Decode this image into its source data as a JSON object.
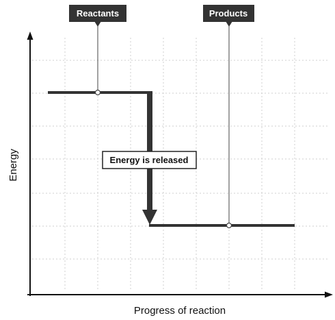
{
  "axes": {
    "x_label": "Progress of reaction",
    "y_label": "Energy"
  },
  "labels": {
    "reactants": "Reactants",
    "products": "Products",
    "energy_change": "Energy is released"
  },
  "levels": {
    "reactants_energy": "high",
    "products_energy": "low"
  }
}
